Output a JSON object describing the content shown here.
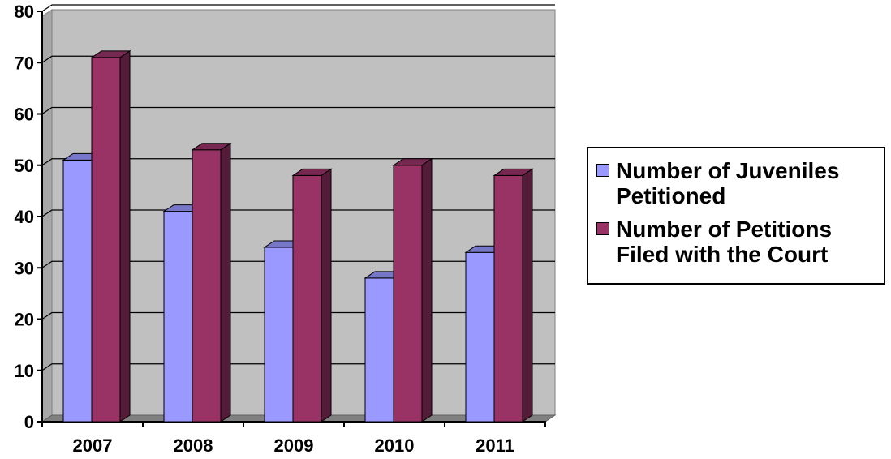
{
  "chart_data": {
    "type": "bar",
    "title": "",
    "xlabel": "",
    "ylabel": "",
    "categories": [
      "2007",
      "2008",
      "2009",
      "2010",
      "2011"
    ],
    "series": [
      {
        "name": "Number of Juveniles Petitioned",
        "values": [
          51,
          41,
          34,
          28,
          33
        ],
        "color": "#9999ff"
      },
      {
        "name": "Number of Petitions Filed with the Court",
        "values": [
          71,
          53,
          48,
          50,
          48
        ],
        "color": "#993366"
      }
    ],
    "ylim": [
      0,
      80
    ],
    "yticks": [
      0,
      10,
      20,
      30,
      40,
      50,
      60,
      70,
      80
    ],
    "grid": true,
    "legend_position": "right",
    "plot_background": "#c0c0c0"
  }
}
